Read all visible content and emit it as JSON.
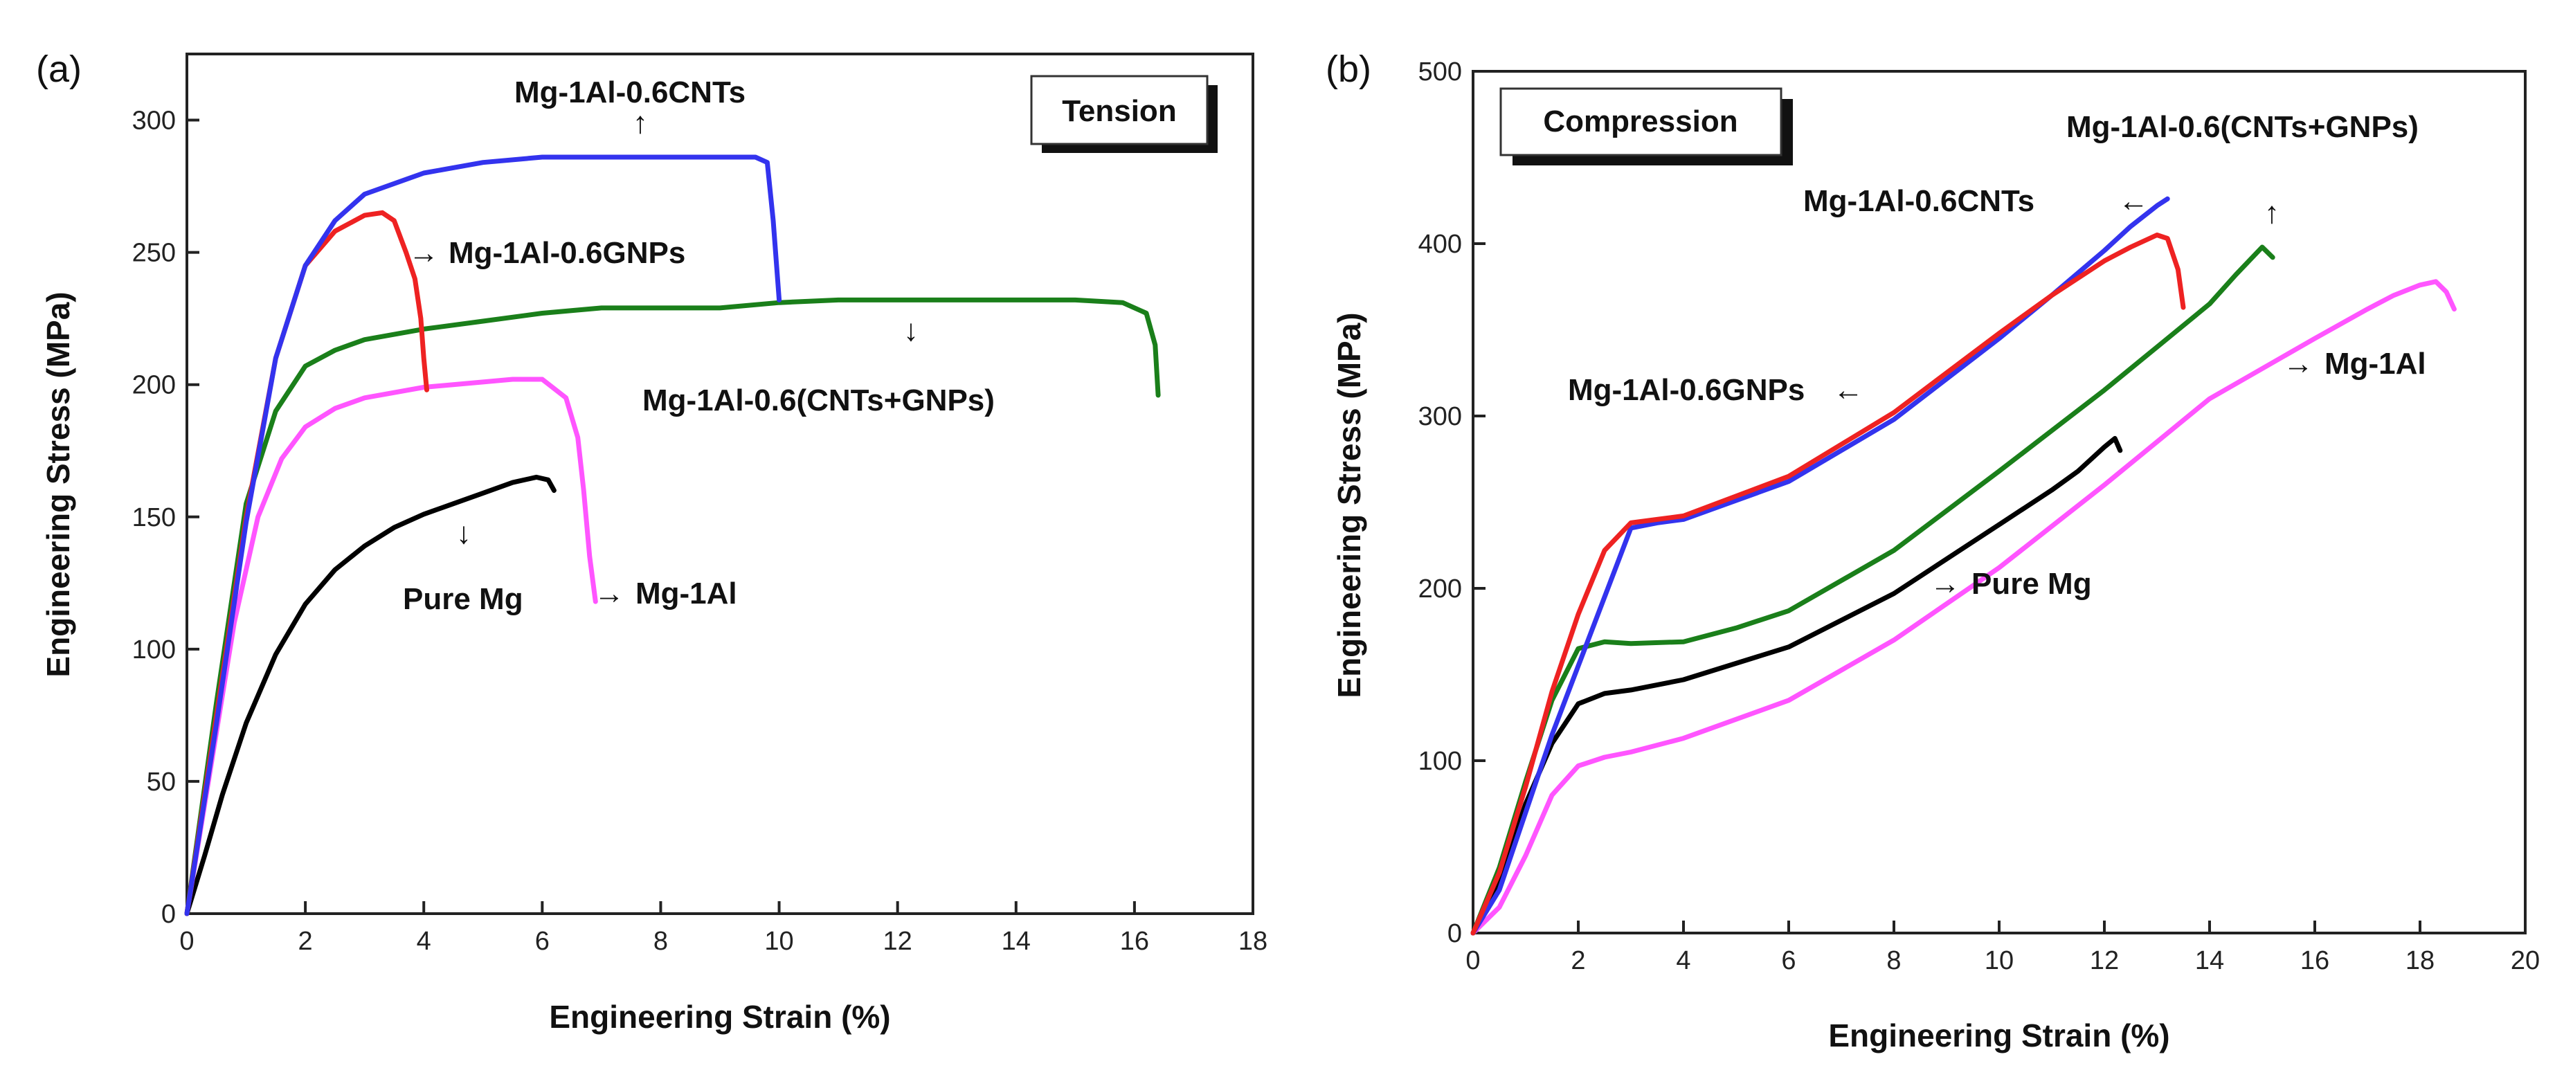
{
  "chart_data": [
    {
      "type": "line",
      "panel_label": "(a)",
      "box_label": "Tension",
      "xlabel": "Engineering Strain (%)",
      "ylabel": "Engineering Stress (MPa)",
      "xlim": [
        0,
        18
      ],
      "ylim": [
        0,
        325
      ],
      "xticks": [
        0,
        2,
        4,
        6,
        8,
        10,
        12,
        14,
        16,
        18
      ],
      "yticks": [
        0,
        50,
        100,
        150,
        200,
        250,
        300
      ],
      "series": [
        {
          "name": "Pure Mg",
          "color": "#000000",
          "x": [
            0,
            0.3,
            0.6,
            1.0,
            1.5,
            2.0,
            2.5,
            3.0,
            3.5,
            4.0,
            4.5,
            5.0,
            5.5,
            5.9,
            6.1,
            6.2
          ],
          "y": [
            0,
            22,
            45,
            72,
            98,
            117,
            130,
            139,
            146,
            151,
            155,
            159,
            163,
            165,
            164,
            160
          ]
        },
        {
          "name": "Mg-1Al",
          "color": "#ff55ff",
          "x": [
            0,
            0.4,
            0.8,
            1.2,
            1.6,
            2.0,
            2.5,
            3.0,
            4.0,
            5.0,
            5.5,
            6.0,
            6.4,
            6.6,
            6.7,
            6.8,
            6.9
          ],
          "y": [
            0,
            55,
            110,
            150,
            172,
            184,
            191,
            195,
            199,
            201,
            202,
            202,
            195,
            180,
            160,
            135,
            118
          ]
        },
        {
          "name": "Mg-1Al-0.6(CNTs+GNPs)",
          "color": "#1a7f1a",
          "x": [
            0,
            0.5,
            1.0,
            1.5,
            2.0,
            2.5,
            3.0,
            4.0,
            5.0,
            6.0,
            7.0,
            8.0,
            9.0,
            10.0,
            11.0,
            12.0,
            13.0,
            14.0,
            15.0,
            15.8,
            16.2,
            16.35,
            16.4
          ],
          "y": [
            0,
            80,
            155,
            190,
            207,
            213,
            217,
            221,
            224,
            227,
            229,
            229,
            229,
            231,
            232,
            232,
            232,
            232,
            232,
            231,
            227,
            215,
            196
          ]
        },
        {
          "name": "Mg-1Al-0.6GNPs",
          "color": "#ee2222",
          "x": [
            0,
            0.5,
            1.0,
            1.5,
            2.0,
            2.5,
            3.0,
            3.3,
            3.5,
            3.7,
            3.85,
            3.95,
            4.0,
            4.05
          ],
          "y": [
            0,
            75,
            150,
            210,
            245,
            258,
            264,
            265,
            262,
            250,
            240,
            225,
            210,
            198
          ]
        },
        {
          "name": "Mg-1Al-0.6CNTs",
          "color": "#3333ee",
          "x": [
            0,
            0.5,
            1.0,
            1.5,
            2.0,
            2.5,
            3.0,
            4.0,
            5.0,
            6.0,
            7.0,
            8.0,
            9.0,
            9.6,
            9.8,
            9.9,
            10.0
          ],
          "y": [
            0,
            72,
            148,
            210,
            245,
            262,
            272,
            280,
            284,
            286,
            286,
            286,
            286,
            286,
            284,
            262,
            232
          ]
        }
      ],
      "annotations": [
        {
          "text": "Mg-1Al-0.6CNTs",
          "arrow": "↑"
        },
        {
          "text": "Mg-1Al-0.6GNPs",
          "arrow": "→"
        },
        {
          "text": "Mg-1Al-0.6(CNTs+GNPs)",
          "arrow": "↓"
        },
        {
          "text": "Pure Mg",
          "arrow": "↓"
        },
        {
          "text": "Mg-1Al",
          "arrow": "→"
        }
      ]
    },
    {
      "type": "line",
      "panel_label": "(b)",
      "box_label": "Compression",
      "xlabel": "Engineering Strain (%)",
      "ylabel": "Engineering Stress (MPa)",
      "xlim": [
        0,
        20
      ],
      "ylim": [
        0,
        500
      ],
      "xticks": [
        0,
        2,
        4,
        6,
        8,
        10,
        12,
        14,
        16,
        18,
        20
      ],
      "yticks": [
        0,
        100,
        200,
        300,
        400,
        500
      ],
      "series": [
        {
          "name": "Mg-1Al",
          "color": "#ff55ff",
          "x": [
            0,
            0.5,
            1.0,
            1.5,
            2.0,
            2.5,
            3.0,
            4.0,
            6.0,
            8.0,
            10.0,
            12.0,
            14.0,
            16.0,
            17.0,
            17.5,
            18.0,
            18.3,
            18.5,
            18.65
          ],
          "y": [
            0,
            15,
            45,
            80,
            97,
            102,
            105,
            113,
            135,
            170,
            212,
            260,
            310,
            345,
            362,
            370,
            376,
            378,
            372,
            362
          ]
        },
        {
          "name": "Pure Mg",
          "color": "#000000",
          "x": [
            0,
            0.5,
            1.0,
            1.5,
            2.0,
            2.5,
            3.0,
            4.0,
            6.0,
            8.0,
            10.0,
            11.0,
            11.5,
            12.0,
            12.2,
            12.3
          ],
          "y": [
            0,
            30,
            75,
            110,
            133,
            139,
            141,
            147,
            166,
            197,
            237,
            257,
            268,
            282,
            287,
            280
          ]
        },
        {
          "name": "Mg-1Al-0.6(CNTs+GNPs)",
          "color": "#1a7f1a",
          "x": [
            0,
            0.5,
            1.0,
            1.5,
            2.0,
            2.5,
            3.0,
            4.0,
            5.0,
            6.0,
            8.0,
            10.0,
            12.0,
            13.0,
            14.0,
            14.5,
            15.0,
            15.2
          ],
          "y": [
            0,
            38,
            88,
            135,
            165,
            169,
            168,
            169,
            177,
            187,
            222,
            268,
            315,
            340,
            365,
            382,
            398,
            392
          ]
        },
        {
          "name": "Mg-1Al-0.6CNTs",
          "color": "#3333ee",
          "x": [
            0,
            0.5,
            1.0,
            1.5,
            2.0,
            2.5,
            3.0,
            3.5,
            4.0,
            6.0,
            8.0,
            10.0,
            11.0,
            12.0,
            12.5,
            13.0,
            13.2
          ],
          "y": [
            0,
            25,
            70,
            115,
            155,
            195,
            235,
            238,
            240,
            262,
            298,
            345,
            370,
            396,
            410,
            422,
            426
          ]
        },
        {
          "name": "Mg-1Al-0.6GNPs",
          "color": "#ee2222",
          "x": [
            0,
            0.5,
            1.0,
            1.5,
            2.0,
            2.5,
            3.0,
            3.5,
            4.0,
            6.0,
            8.0,
            10.0,
            11.0,
            12.0,
            12.5,
            13.0,
            13.2,
            13.4,
            13.5
          ],
          "y": [
            0,
            35,
            85,
            140,
            185,
            222,
            238,
            240,
            242,
            265,
            302,
            348,
            370,
            390,
            398,
            405,
            403,
            385,
            363
          ]
        }
      ],
      "annotations": [
        {
          "text": "Mg-1Al-0.6(CNTs+GNPs)",
          "arrow": "↑"
        },
        {
          "text": "Mg-1Al-0.6CNTs",
          "arrow": "←"
        },
        {
          "text": "Mg-1Al-0.6GNPs",
          "arrow": "←"
        },
        {
          "text": "Pure Mg",
          "arrow": "→"
        },
        {
          "text": "Mg-1Al",
          "arrow": "→"
        }
      ]
    }
  ]
}
